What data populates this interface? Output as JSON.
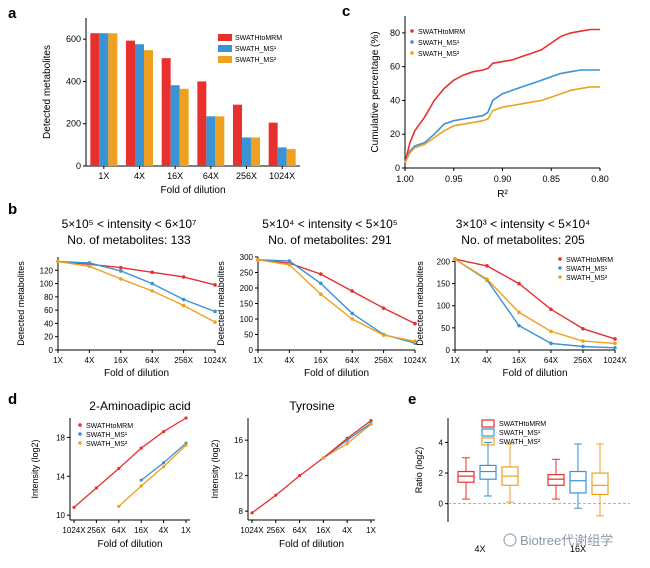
{
  "palette": {
    "red": "#e8302e",
    "blue": "#3a93d3",
    "orange": "#f0a020",
    "axis": "#000000"
  },
  "panels": {
    "a": {
      "letter": "a",
      "chart_data": {
        "type": "bar",
        "categories": [
          "1X",
          "4X",
          "16X",
          "64X",
          "256X",
          "1024X"
        ],
        "series": [
          {
            "name": "SWATHtoMRM",
            "values": [
              628,
              593,
              510,
              400,
              290,
              205
            ]
          },
          {
            "name": "SWATH_MS¹",
            "values": [
              628,
              576,
              382,
              235,
              135,
              88
            ]
          },
          {
            "name": "SWATH_MS²",
            "values": [
              628,
              548,
              365,
              235,
              135,
              80
            ]
          }
        ],
        "ylabel": "Detected metabolites",
        "xlabel": "Fold of dilution",
        "yticks": [
          0,
          200,
          400,
          600
        ],
        "ylim": [
          0,
          700
        ],
        "legend": "top-right"
      }
    },
    "c": {
      "letter": "c",
      "chart_data": {
        "type": "line",
        "ylabel": "Cumulative percentage (%)",
        "xlabel": "R²",
        "xticks": [
          "1.00",
          "0.95",
          "0.90",
          "0.85",
          "0.80"
        ],
        "yticks": [
          "0",
          "20",
          "40",
          "60",
          "80"
        ],
        "xlim": [
          1.0,
          0.8
        ],
        "ylim": [
          0,
          90
        ],
        "legend": "top-left",
        "series": [
          {
            "name": "SWATHtoMRM",
            "x": [
              1.0,
              0.995,
              0.99,
              0.98,
              0.97,
              0.96,
              0.95,
              0.94,
              0.93,
              0.92,
              0.915,
              0.91,
              0.9,
              0.89,
              0.88,
              0.87,
              0.86,
              0.85,
              0.84,
              0.83,
              0.82,
              0.81,
              0.8
            ],
            "y": [
              3,
              15,
              22,
              30,
              40,
              47,
              52,
              55,
              57,
              58,
              59,
              62,
              63,
              64,
              66,
              68,
              70,
              74,
              78,
              80,
              81,
              82,
              82
            ]
          },
          {
            "name": "SWATH_MS¹",
            "x": [
              1.0,
              0.995,
              0.99,
              0.98,
              0.97,
              0.96,
              0.95,
              0.94,
              0.93,
              0.92,
              0.915,
              0.91,
              0.9,
              0.89,
              0.88,
              0.87,
              0.86,
              0.85,
              0.84,
              0.83,
              0.82,
              0.81,
              0.8
            ],
            "y": [
              3,
              10,
              13,
              15,
              20,
              26,
              28,
              29,
              30,
              31,
              33,
              40,
              44,
              46,
              48,
              50,
              52,
              54,
              56,
              57,
              58,
              58,
              58
            ]
          },
          {
            "name": "SWATH_MS²",
            "x": [
              1.0,
              0.995,
              0.99,
              0.98,
              0.97,
              0.96,
              0.95,
              0.94,
              0.93,
              0.92,
              0.915,
              0.91,
              0.9,
              0.89,
              0.88,
              0.87,
              0.86,
              0.85,
              0.84,
              0.83,
              0.82,
              0.81,
              0.8
            ],
            "y": [
              3,
              9,
              12,
              14,
              18,
              22,
              25,
              26,
              27,
              28,
              29,
              34,
              36,
              37,
              38,
              39,
              40,
              42,
              44,
              46,
              47,
              48,
              48
            ]
          }
        ]
      }
    },
    "b": {
      "letter": "b",
      "xlabel": "Fold of dilution",
      "ylabel": "Detected metabolites",
      "legend_names": [
        "SWATHtoMRM",
        "SWATH_MS¹",
        "SWATH_MS²"
      ],
      "charts": [
        {
          "type": "line",
          "title1": "5×10⁵ < intensity < 6×10⁷",
          "title2": "No. of metabolites: 133",
          "categories": [
            "1X",
            "4X",
            "16X",
            "64X",
            "256X",
            "1024X"
          ],
          "yticks": [
            0,
            20,
            40,
            60,
            80,
            100,
            120
          ],
          "ylim": [
            0,
            140
          ],
          "series": [
            {
              "name": "SWATHtoMRM",
              "values": [
                133,
                129,
                124,
                117,
                110,
                98
              ]
            },
            {
              "name": "SWATH_MS¹",
              "values": [
                133,
                131,
                119,
                100,
                76,
                58
              ]
            },
            {
              "name": "SWATH_MS²",
              "values": [
                133,
                126,
                107,
                89,
                67,
                42
              ]
            }
          ]
        },
        {
          "type": "line",
          "title1": "5×10⁴ < intensity < 5×10⁵",
          "title2": "No. of metabolites: 291",
          "categories": [
            "1X",
            "4X",
            "16X",
            "64X",
            "256X",
            "1024X"
          ],
          "yticks": [
            0,
            50,
            100,
            150,
            200,
            250,
            300
          ],
          "ylim": [
            0,
            300
          ],
          "series": [
            {
              "name": "SWATHtoMRM",
              "values": [
                291,
                280,
                245,
                190,
                135,
                85
              ]
            },
            {
              "name": "SWATH_MS¹",
              "values": [
                291,
                287,
                215,
                118,
                50,
                22
              ]
            },
            {
              "name": "SWATH_MS²",
              "values": [
                291,
                275,
                180,
                100,
                48,
                28
              ]
            }
          ]
        },
        {
          "type": "line",
          "title1": "3×10³ < intensity < 5×10⁴",
          "title2": "No. of metabolites: 205",
          "categories": [
            "1X",
            "4X",
            "16X",
            "64X",
            "256X",
            "1024X"
          ],
          "yticks": [
            0,
            50,
            100,
            150,
            200
          ],
          "ylim": [
            0,
            210
          ],
          "legend": "top-right",
          "series": [
            {
              "name": "SWATHtoMRM",
              "values": [
                205,
                190,
                150,
                92,
                48,
                25
              ]
            },
            {
              "name": "SWATH_MS¹",
              "values": [
                205,
                158,
                55,
                15,
                8,
                5
              ]
            },
            {
              "name": "SWATH_MS²",
              "values": [
                205,
                160,
                85,
                42,
                20,
                15
              ]
            }
          ]
        }
      ]
    },
    "d": {
      "letter": "d",
      "xlabel": "Fold of dilution",
      "ylabel": "Intensity (log2)",
      "charts": [
        {
          "type": "line",
          "title": "2-Aminoadipic acid",
          "categories": [
            "1024X",
            "256X",
            "64X",
            "16X",
            "4X",
            "1X"
          ],
          "yticks": [
            10,
            14,
            18
          ],
          "ylim": [
            9.5,
            20
          ],
          "legend": "top-left",
          "series": [
            {
              "name": "SWATHtoMRM",
              "values": [
                10.8,
                12.8,
                14.8,
                16.9,
                18.6,
                20.0
              ]
            },
            {
              "name": "SWATH_MS¹",
              "values": [
                null,
                null,
                null,
                13.6,
                15.4,
                17.4
              ]
            },
            {
              "name": "SWATH_MS²",
              "values": [
                null,
                null,
                10.9,
                13.0,
                15.0,
                17.2
              ]
            }
          ]
        },
        {
          "type": "line",
          "title": "Tyrosine",
          "categories": [
            "1024X",
            "256X",
            "64X",
            "16X",
            "4X",
            "1X"
          ],
          "yticks": [
            8,
            12,
            16
          ],
          "ylim": [
            7,
            18.5
          ],
          "series": [
            {
              "name": "SWATHtoMRM",
              "values": [
                7.8,
                9.8,
                12.0,
                14.0,
                16.2,
                18.2
              ]
            },
            {
              "name": "SWATH_MS¹",
              "values": [
                null,
                null,
                null,
                14.0,
                16.0,
                17.9
              ]
            },
            {
              "name": "SWATH_MS²",
              "values": [
                null,
                null,
                null,
                14.0,
                15.6,
                17.8
              ]
            }
          ]
        }
      ]
    },
    "e": {
      "letter": "e",
      "chart_data": {
        "type": "box",
        "ylabel": "Ratio (log2)",
        "yticks": [
          0,
          2,
          4
        ],
        "ylim": [
          -1.2,
          5.6
        ],
        "legend": "top-center",
        "groups": [
          {
            "label": "4X",
            "boxes": [
              {
                "series": "SWATHtoMRM",
                "min": 0.3,
                "q1": 1.4,
                "median": 1.8,
                "q3": 2.1,
                "max": 3.0
              },
              {
                "series": "SWATH_MS¹",
                "min": 0.5,
                "q1": 1.6,
                "median": 2.1,
                "q3": 2.5,
                "max": 4.0
              },
              {
                "series": "SWATH_MS²",
                "min": 0.1,
                "q1": 1.2,
                "median": 1.8,
                "q3": 2.4,
                "max": 3.9
              }
            ]
          },
          {
            "label": "16X",
            "boxes": [
              {
                "series": "SWATHtoMRM",
                "min": 0.3,
                "q1": 1.2,
                "median": 1.6,
                "q3": 1.9,
                "max": 2.9
              },
              {
                "series": "SWATH_MS¹",
                "min": -0.3,
                "q1": 0.7,
                "median": 1.5,
                "q3": 2.1,
                "max": 3.9
              },
              {
                "series": "SWATH_MS²",
                "min": -0.8,
                "q1": 0.6,
                "median": 1.2,
                "q3": 2.0,
                "max": 3.9
              }
            ]
          }
        ]
      }
    }
  },
  "watermark": {
    "text": "Biotree代谢组学"
  }
}
